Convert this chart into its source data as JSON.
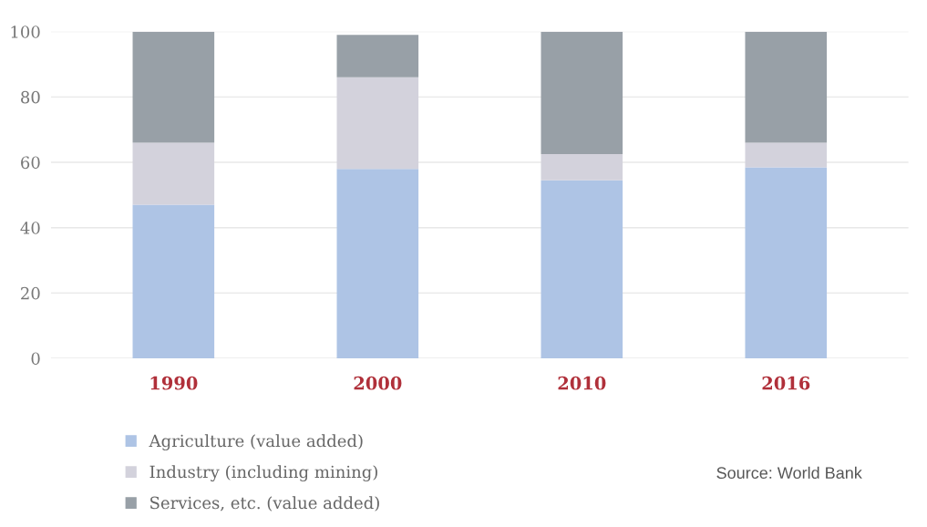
{
  "chart_data": {
    "type": "bar",
    "stacked": true,
    "categories": [
      "1990",
      "2000",
      "2010",
      "2016"
    ],
    "series": [
      {
        "name": "Agriculture (value added)",
        "color": "#aec4e5",
        "values": [
          47,
          58,
          54.5,
          58.5
        ]
      },
      {
        "name": "Industry (including mining)",
        "color": "#d3d2dc",
        "values": [
          19,
          28,
          8,
          7.5
        ]
      },
      {
        "name": "Services, etc. (value added)",
        "color": "#98a0a7",
        "values": [
          34,
          13,
          37.5,
          34
        ]
      }
    ],
    "ylim": [
      0,
      100
    ],
    "yticks": [
      0,
      20,
      40,
      60,
      80,
      100
    ],
    "grid": "y",
    "legend": "bottom left",
    "annotations": [
      "Source: World Bank"
    ]
  }
}
